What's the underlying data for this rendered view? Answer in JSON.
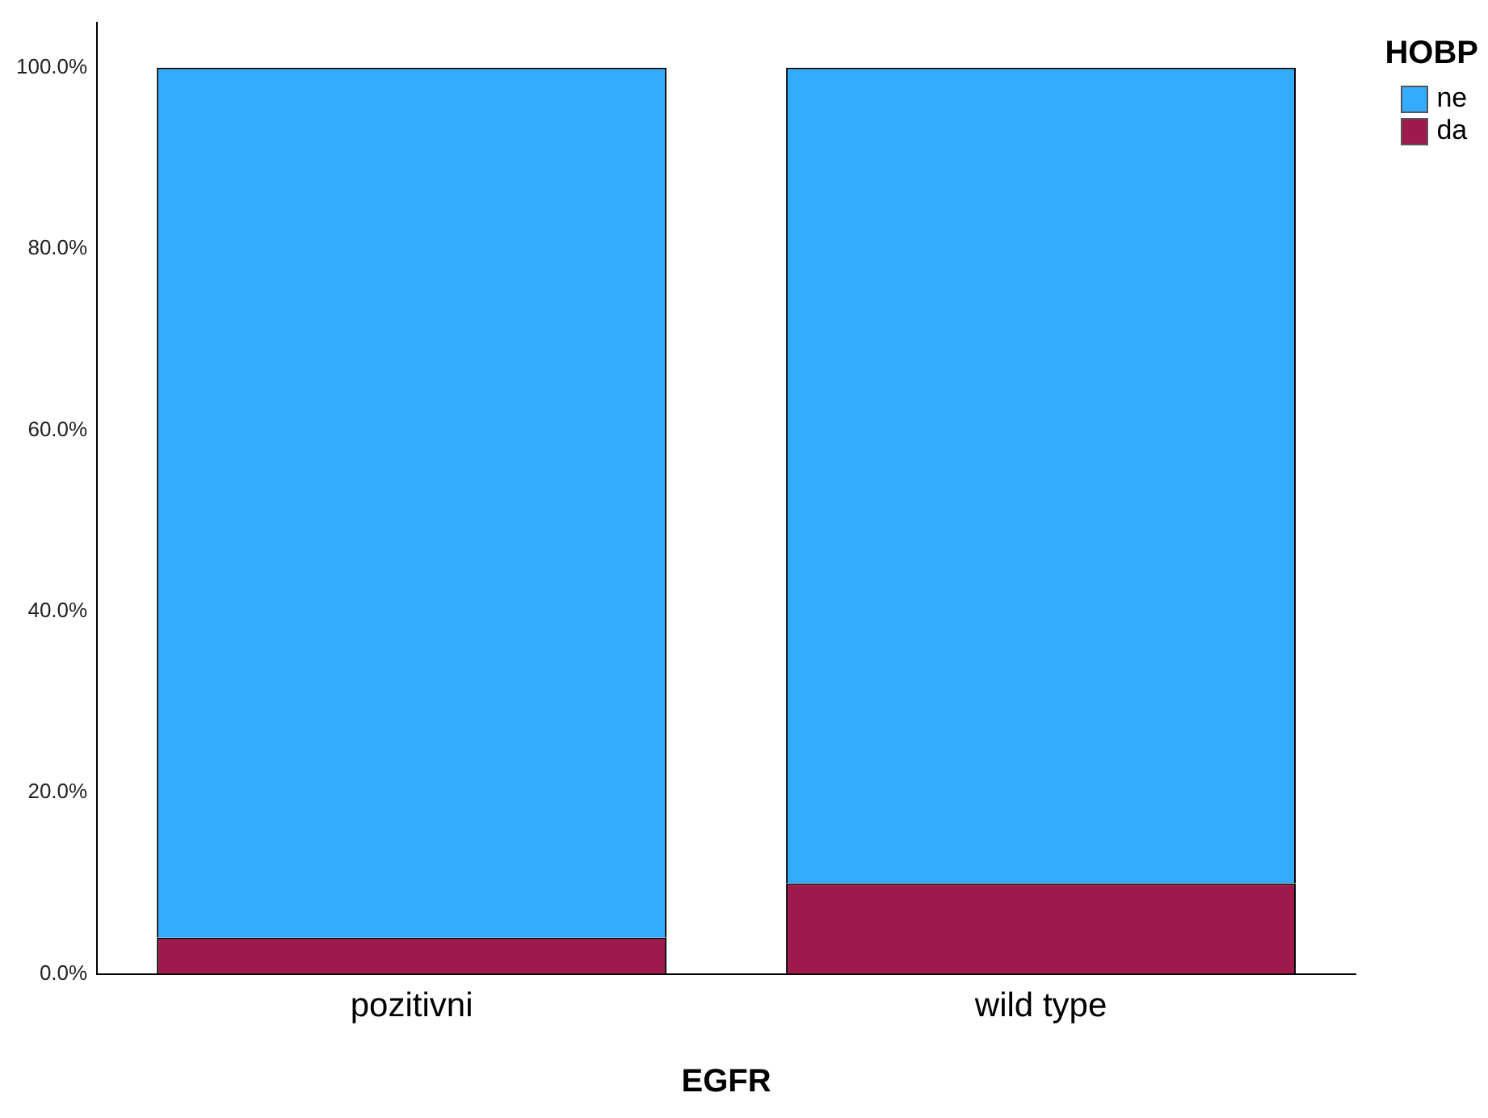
{
  "chart_data": {
    "type": "bar",
    "stacked": true,
    "xlabel": "EGFR",
    "legend_title": "HOBP",
    "legend": "top right",
    "categories": [
      "pozitivni",
      "wild type"
    ],
    "series": [
      {
        "name": "da",
        "color": "#9e1a4d",
        "values": [
          4,
          10
        ]
      },
      {
        "name": "ne",
        "color": "#33acff",
        "values": [
          96,
          90
        ]
      }
    ],
    "ylim": [
      0,
      105
    ],
    "yticks": [
      {
        "value": 0,
        "label": "0.0%"
      },
      {
        "value": 20,
        "label": "20.0%"
      },
      {
        "value": 40,
        "label": "40.0%"
      },
      {
        "value": 60,
        "label": "60.0%"
      },
      {
        "value": 80,
        "label": "80.0%"
      },
      {
        "value": 100,
        "label": "100.0%"
      }
    ],
    "grid": false
  }
}
